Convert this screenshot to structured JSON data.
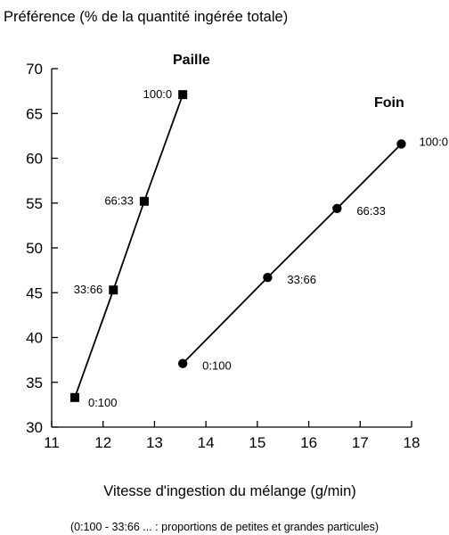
{
  "chart_data": {
    "type": "scatter",
    "ylabel": "Préférence (% de la quantité ingérée totale)",
    "xlabel": "Vitesse d'ingestion du mélange (g/min)",
    "note": "(0:100 - 33:66 ... : proportions de petites et grandes particules)",
    "xlim": [
      11,
      18
    ],
    "ylim": [
      30,
      70
    ],
    "xticks": [
      "11",
      "12",
      "13",
      "14",
      "15",
      "16",
      "17",
      "18"
    ],
    "yticks": [
      "30",
      "35",
      "40",
      "45",
      "50",
      "55",
      "60",
      "65",
      "70"
    ],
    "grid": false,
    "series": [
      {
        "name": "Paille",
        "marker": "square",
        "points": [
          {
            "x": 11.45,
            "y": 33.3,
            "label": "0:100"
          },
          {
            "x": 12.2,
            "y": 45.3,
            "label": "33:66"
          },
          {
            "x": 12.8,
            "y": 55.2,
            "label": "66:33"
          },
          {
            "x": 13.55,
            "y": 67.1,
            "label": "100:0"
          }
        ]
      },
      {
        "name": "Foin",
        "marker": "circle",
        "points": [
          {
            "x": 13.55,
            "y": 37.1,
            "label": "0:100"
          },
          {
            "x": 15.2,
            "y": 46.7,
            "label": "33:66"
          },
          {
            "x": 16.55,
            "y": 54.4,
            "label": "66:33"
          },
          {
            "x": 17.8,
            "y": 61.6,
            "label": "100:0"
          }
        ]
      }
    ]
  }
}
